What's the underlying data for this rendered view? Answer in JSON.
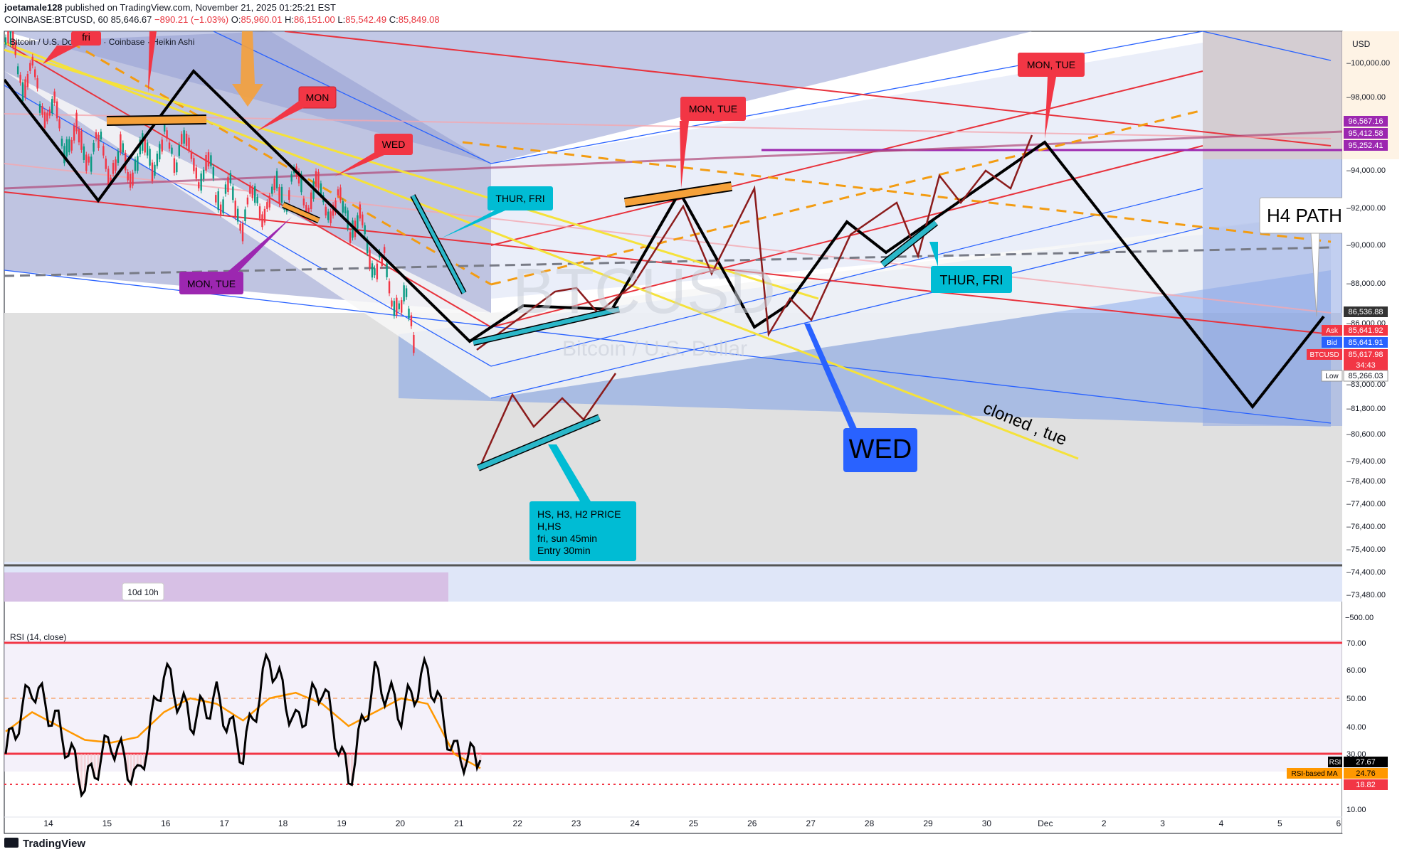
{
  "header": {
    "user": "joetamale128",
    "published": "published on TradingView.com, November 21, 2025 01:25:21 EST",
    "symbol": "COINBASE:BTCUSD, 60",
    "last": "85,646.67",
    "change": "−890.21 (−1.03%)",
    "o_label": "O:",
    "o": "85,960.01",
    "h_label": "H:",
    "h": "86,151.00",
    "l_label": "L:",
    "l": "85,542.49",
    "c_label": "C:",
    "c": "85,849.08"
  },
  "legend": {
    "title": "Bitcoin / U.S. Dollar · 1h · Coinbase · Heikin Ashi"
  },
  "watermark": {
    "symbol": "BTCUSD",
    "name": "Bitcoin / U.S. Dollar"
  },
  "currency": "USD",
  "price_axis": [
    "100,000.00",
    "98,000.00",
    "94,000.00",
    "92,000.00",
    "90,000.00",
    "88,000.00",
    "86,000.00",
    "83,000.00",
    "81,800.00",
    "80,600.00",
    "79,400.00",
    "78,400.00",
    "77,400.00",
    "76,400.00",
    "75,400.00",
    "74,400.00",
    "73,480.00"
  ],
  "price_axis_sub": "−500.00",
  "price_tags": [
    {
      "text": "96,567.16",
      "color": "#9c27b0"
    },
    {
      "text": "95,412.58",
      "color": "#9c27b0"
    },
    {
      "text": "95,252.41",
      "color": "#9c27b0"
    },
    {
      "text": "86,536.88",
      "color": "#333333"
    },
    {
      "label": "Ask",
      "text": "85,641.92",
      "color": "#f23645"
    },
    {
      "label": "Bid",
      "text": "85,641.91",
      "color": "#2962ff"
    },
    {
      "label": "BTCUSD",
      "text": "85,617.98",
      "color": "#f23645",
      "sub": "34:43"
    },
    {
      "label": "Low",
      "text": "85,266.03",
      "color": "#ffffff"
    }
  ],
  "time_axis": [
    "14",
    "15",
    "16",
    "17",
    "18",
    "19",
    "20",
    "21",
    "22",
    "23",
    "24",
    "25",
    "26",
    "27",
    "28",
    "29",
    "30",
    "Dec",
    "2",
    "3",
    "4",
    "5",
    "6"
  ],
  "annotations": {
    "fri": "fri",
    "mon": "MON",
    "wed_small": "WED",
    "mon_tue_purple": "MON, TUE",
    "thur_fri_1": "THUR, FRI",
    "mon_tue_mid": "MON, TUE",
    "mon_tue_top": "MON, TUE",
    "thur_fri_2": "THUR, FRI",
    "wed_big": "WED",
    "h4_path": "H4 PATH",
    "cloned": "cloned , tue",
    "note_lines": [
      "HS, H3, H2 PRICE",
      "H,HS",
      "fri, sun 45min",
      "Entry 30min"
    ],
    "range_label": "10d 10h"
  },
  "rsi": {
    "title": "RSI (14, close)",
    "axis": [
      "70.00",
      "60.00",
      "50.00",
      "40.00",
      "30.00",
      "10.00"
    ],
    "rsi_label": "RSI",
    "rsi_value": "27.67",
    "ma_label": "RSI-based MA",
    "ma_value": "24.76",
    "low_value": "18.82"
  },
  "chart_data": {
    "type": "line",
    "title": "Bitcoin / U.S. Dollar · 1h · Coinbase · Heikin Ashi",
    "x_dates": [
      "14",
      "15",
      "16",
      "17",
      "18",
      "19",
      "20",
      "21",
      "22",
      "23",
      "24",
      "25",
      "26",
      "27",
      "28",
      "29",
      "30",
      "Dec",
      "2",
      "3",
      "4",
      "5",
      "6"
    ],
    "price_path_actual": {
      "name": "",
      "x": [
        "14",
        "15",
        "16",
        "17",
        "18",
        "19",
        "20",
        "21"
      ],
      "values": [
        101000,
        96000,
        94500,
        95500,
        92000,
        93500,
        91500,
        85600
      ]
    },
    "projected_path": {
      "x": [
        "22",
        "23",
        "24",
        "25",
        "26",
        "27",
        "28",
        "29",
        "30",
        "Dec",
        "4",
        "6"
      ],
      "values": [
        86500,
        87500,
        89000,
        93500,
        86000,
        91000,
        90000,
        93000,
        95500,
        95400,
        82000,
        86500
      ]
    },
    "rsi_series": {
      "values": [
        30,
        55,
        40,
        18,
        35,
        20,
        60,
        42,
        50,
        30,
        65,
        40,
        55,
        20,
        58,
        45,
        60,
        30,
        27.67
      ],
      "ma": [
        38,
        45,
        40,
        35,
        34,
        36,
        45,
        50,
        48,
        42,
        50,
        52,
        48,
        40,
        45,
        50,
        48,
        30,
        24.76
      ],
      "ylim": [
        10,
        75
      ],
      "levels": [
        70,
        50,
        30
      ]
    },
    "ylim": [
      73480,
      101500
    ]
  }
}
